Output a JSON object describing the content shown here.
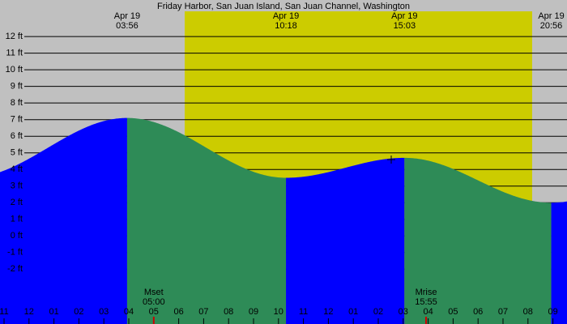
{
  "title": "Friday Harbor, San Juan Island, San Juan Channel, Washington",
  "extremes": [
    {
      "date": "Apr 19",
      "time": "03:56",
      "height": 7.1
    },
    {
      "date": "Apr 19",
      "time": "10:18",
      "height": 3.5
    },
    {
      "date": "Apr 19",
      "time": "15:03",
      "height": 4.7
    },
    {
      "date": "Apr 19",
      "time": "20:56",
      "height": 2.0
    }
  ],
  "ylim": [
    -5.3,
    14.2
  ],
  "yticks": [
    {
      "value": 12,
      "label": "12 ft"
    },
    {
      "value": 11,
      "label": "11 ft"
    },
    {
      "value": 10,
      "label": "10 ft"
    },
    {
      "value": 9,
      "label": "9 ft"
    },
    {
      "value": 8,
      "label": "8 ft"
    },
    {
      "value": 7,
      "label": "7 ft"
    },
    {
      "value": 6,
      "label": "6 ft"
    },
    {
      "value": 5,
      "label": "5 ft"
    },
    {
      "value": 4,
      "label": "4 ft"
    },
    {
      "value": 3,
      "label": "3 ft"
    },
    {
      "value": 2,
      "label": "2 ft"
    },
    {
      "value": 1,
      "label": "1 ft"
    },
    {
      "value": 0,
      "label": "0 ft"
    },
    {
      "value": -1,
      "label": "-1 ft"
    },
    {
      "value": -2,
      "label": "-2 ft"
    }
  ],
  "hours": [
    "11",
    "12",
    "01",
    "02",
    "03",
    "04",
    "05",
    "06",
    "07",
    "08",
    "09",
    "10",
    "11",
    "12",
    "01",
    "02",
    "03",
    "04",
    "05",
    "06",
    "07",
    "08",
    "09"
  ],
  "moon": [
    {
      "name": "Mset",
      "time": "05:00"
    },
    {
      "name": "Mrise",
      "time": "15:55"
    }
  ]
}
